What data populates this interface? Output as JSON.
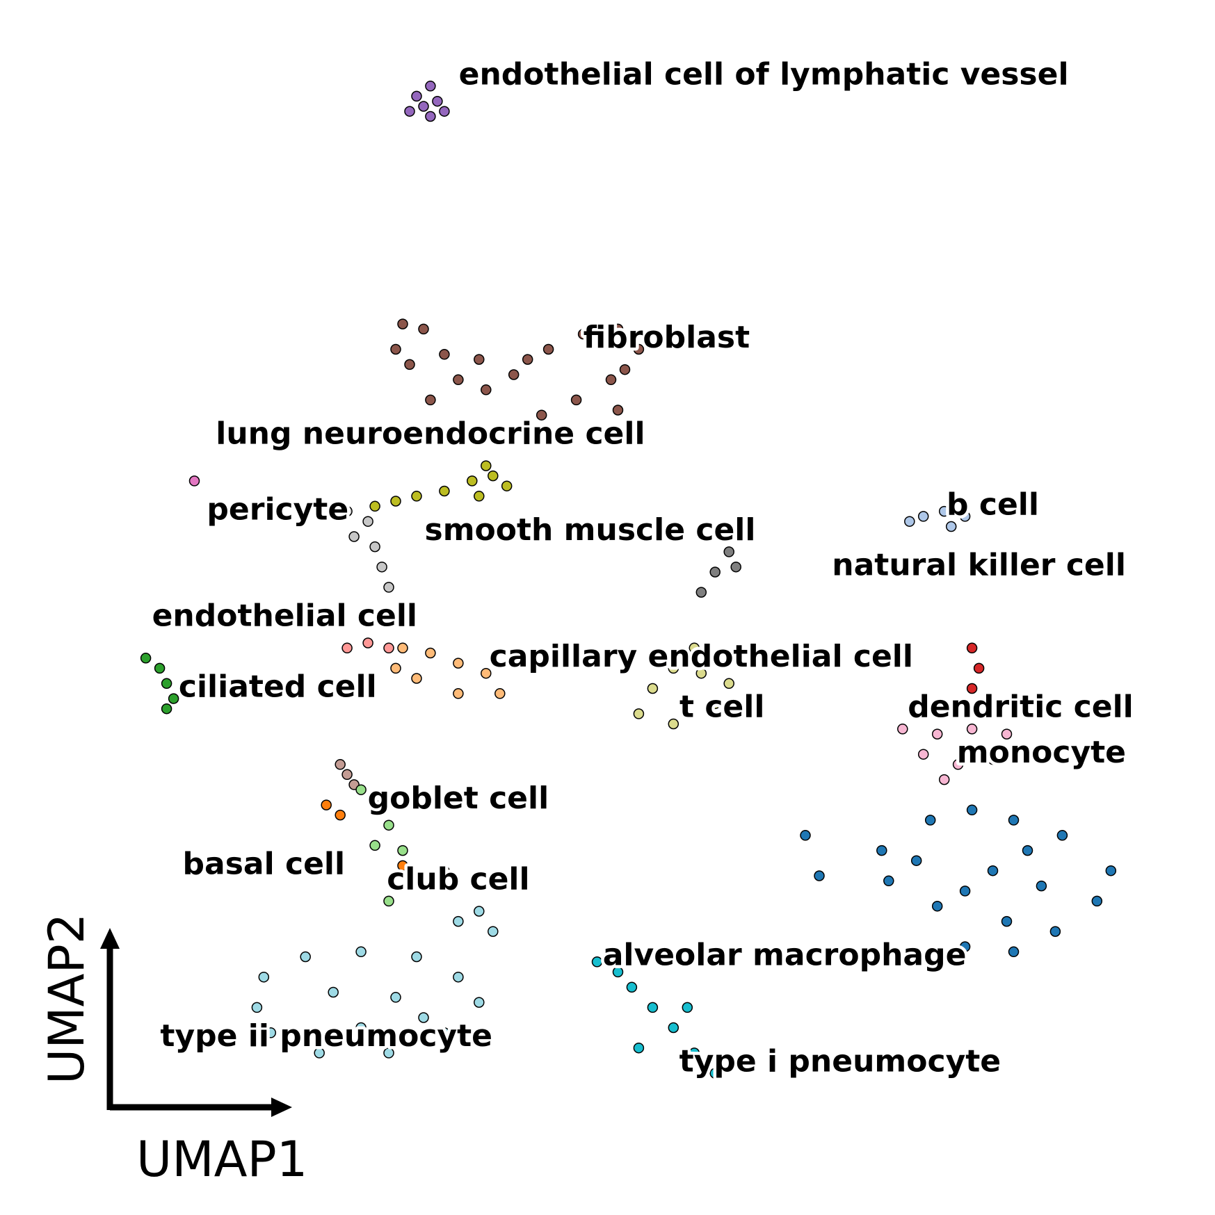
{
  "chart_data": {
    "type": "scatter",
    "xlabel": "UMAP1",
    "ylabel": "UMAP2",
    "grid": false,
    "legend": "on data",
    "series": [
      {
        "name": "endothelial cell of lymphatic vessel",
        "color": "#9467bd",
        "points": [
          [
            6.0,
            17.9
          ],
          [
            6.2,
            18.1
          ],
          [
            6.1,
            17.7
          ],
          [
            6.3,
            17.8
          ],
          [
            6.4,
            17.6
          ],
          [
            5.9,
            17.6
          ],
          [
            6.2,
            17.5
          ]
        ]
      },
      {
        "name": "fibroblast",
        "color": "#8c564b",
        "points": [
          [
            5.8,
            13.4
          ],
          [
            6.1,
            13.3
          ],
          [
            6.4,
            12.8
          ],
          [
            5.9,
            12.6
          ],
          [
            6.6,
            12.3
          ],
          [
            7.0,
            12.1
          ],
          [
            7.4,
            12.4
          ],
          [
            7.9,
            12.9
          ],
          [
            8.4,
            13.2
          ],
          [
            8.9,
            13.3
          ],
          [
            9.2,
            12.9
          ],
          [
            8.8,
            12.3
          ],
          [
            8.3,
            11.9
          ],
          [
            7.8,
            11.6
          ],
          [
            6.2,
            11.9
          ],
          [
            8.9,
            11.7
          ],
          [
            7.6,
            12.7
          ],
          [
            6.9,
            12.7
          ],
          [
            5.7,
            12.9
          ],
          [
            9.0,
            12.5
          ]
        ]
      },
      {
        "name": "lung neuroendocrine cell",
        "color": "#e377c2",
        "points": [
          [
            2.8,
            10.3
          ]
        ]
      },
      {
        "name": "smooth muscle cell",
        "color": "#bcbd22",
        "points": [
          [
            5.7,
            9.9
          ],
          [
            6.0,
            10.0
          ],
          [
            6.4,
            10.1
          ],
          [
            6.8,
            10.3
          ],
          [
            7.1,
            10.4
          ],
          [
            7.3,
            10.2
          ],
          [
            6.9,
            10.0
          ],
          [
            5.4,
            9.8
          ],
          [
            7.0,
            10.6
          ]
        ]
      },
      {
        "name": "pericyte",
        "color": "#c7c7c7",
        "points": [
          [
            5.0,
            9.7
          ],
          [
            5.3,
            9.5
          ],
          [
            5.1,
            9.2
          ],
          [
            5.4,
            9.0
          ],
          [
            5.5,
            8.6
          ],
          [
            5.6,
            8.2
          ]
        ]
      },
      {
        "name": "endothelial cell",
        "color": "#ff9896",
        "points": [
          [
            5.0,
            7.0
          ],
          [
            5.3,
            7.1
          ],
          [
            5.6,
            7.0
          ]
        ]
      },
      {
        "name": "capillary endothelial cell",
        "color": "#ffbb78",
        "points": [
          [
            5.8,
            7.0
          ],
          [
            6.2,
            6.9
          ],
          [
            6.6,
            6.7
          ],
          [
            7.0,
            6.5
          ],
          [
            6.0,
            6.4
          ],
          [
            6.6,
            6.1
          ],
          [
            7.2,
            6.1
          ],
          [
            5.7,
            6.6
          ]
        ]
      },
      {
        "name": "ciliated cell",
        "color": "#2ca02c",
        "points": [
          [
            2.1,
            6.8
          ],
          [
            2.3,
            6.6
          ],
          [
            2.4,
            6.3
          ],
          [
            2.5,
            6.0
          ],
          [
            2.4,
            5.8
          ]
        ]
      },
      {
        "name": "t cell",
        "color": "#dbdb8d",
        "points": [
          [
            10.0,
            7.0
          ],
          [
            9.7,
            6.6
          ],
          [
            9.4,
            6.2
          ],
          [
            9.2,
            5.7
          ],
          [
            9.7,
            5.5
          ],
          [
            10.3,
            5.9
          ],
          [
            10.5,
            6.3
          ],
          [
            10.1,
            6.5
          ]
        ]
      },
      {
        "name": "natural killer cell",
        "color": "#7f7f7f",
        "points": [
          [
            10.7,
            9.4
          ],
          [
            10.5,
            8.9
          ],
          [
            10.3,
            8.5
          ],
          [
            10.1,
            8.1
          ],
          [
            10.6,
            8.6
          ]
        ]
      },
      {
        "name": "b cell",
        "color": "#aec7e8",
        "points": [
          [
            13.3,
            9.6
          ],
          [
            13.6,
            9.7
          ],
          [
            13.9,
            9.6
          ],
          [
            13.1,
            9.5
          ],
          [
            13.7,
            9.4
          ]
        ]
      },
      {
        "name": "dendritic cell",
        "color": "#d62728",
        "points": [
          [
            14.0,
            7.0
          ],
          [
            14.1,
            6.6
          ],
          [
            14.0,
            6.2
          ],
          [
            13.9,
            5.9
          ]
        ]
      },
      {
        "name": "monocyte",
        "color": "#f7b6d2",
        "points": [
          [
            13.0,
            5.4
          ],
          [
            13.5,
            5.3
          ],
          [
            14.0,
            5.4
          ],
          [
            14.5,
            5.3
          ],
          [
            13.3,
            4.9
          ],
          [
            13.8,
            4.7
          ],
          [
            14.3,
            4.8
          ],
          [
            13.6,
            4.4
          ]
        ]
      },
      {
        "name": "alveolar macrophage",
        "color": "#1f77b4",
        "points": [
          [
            13.4,
            3.6
          ],
          [
            14.0,
            3.8
          ],
          [
            14.6,
            3.6
          ],
          [
            15.3,
            3.3
          ],
          [
            16.0,
            2.6
          ],
          [
            15.8,
            2.0
          ],
          [
            15.2,
            1.4
          ],
          [
            14.6,
            1.0
          ],
          [
            13.9,
            1.1
          ],
          [
            13.5,
            1.9
          ],
          [
            13.2,
            2.8
          ],
          [
            14.3,
            2.6
          ],
          [
            15.0,
            2.3
          ],
          [
            14.5,
            1.6
          ],
          [
            13.9,
            2.2
          ],
          [
            14.8,
            3.0
          ],
          [
            12.7,
            3.0
          ],
          [
            12.8,
            2.4
          ],
          [
            11.6,
            3.3
          ],
          [
            11.8,
            2.5
          ]
        ]
      },
      {
        "name": "goblet cell",
        "color": "#c49c94",
        "points": [
          [
            4.9,
            4.7
          ],
          [
            5.0,
            4.5
          ],
          [
            5.1,
            4.3
          ]
        ]
      },
      {
        "name": "basal cell",
        "color": "#ff7f0e",
        "points": [
          [
            4.7,
            3.9
          ],
          [
            4.9,
            3.7
          ],
          [
            6.1,
            2.4
          ],
          [
            6.4,
            2.6
          ],
          [
            5.8,
            2.7
          ]
        ]
      },
      {
        "name": "club cell",
        "color": "#98df8a",
        "points": [
          [
            5.2,
            4.2
          ],
          [
            5.4,
            3.9
          ],
          [
            5.6,
            3.5
          ],
          [
            5.8,
            3.0
          ],
          [
            5.4,
            3.1
          ],
          [
            5.9,
            2.3
          ],
          [
            5.6,
            2.0
          ]
        ]
      },
      {
        "name": "type ii pneumocyte",
        "color": "#9edae5",
        "points": [
          [
            3.8,
            0.5
          ],
          [
            4.4,
            0.9
          ],
          [
            5.2,
            1.0
          ],
          [
            6.0,
            0.9
          ],
          [
            6.6,
            0.5
          ],
          [
            6.9,
            0.0
          ],
          [
            6.4,
            -0.6
          ],
          [
            5.6,
            -1.0
          ],
          [
            4.6,
            -1.0
          ],
          [
            3.9,
            -0.6
          ],
          [
            3.7,
            -0.1
          ],
          [
            4.8,
            0.2
          ],
          [
            5.7,
            0.1
          ],
          [
            5.2,
            -0.5
          ],
          [
            6.1,
            -0.3
          ],
          [
            6.6,
            1.6
          ],
          [
            6.9,
            1.8
          ],
          [
            7.1,
            1.4
          ]
        ]
      },
      {
        "name": "type i pneumocyte",
        "color": "#17becf",
        "points": [
          [
            8.6,
            0.8
          ],
          [
            8.9,
            0.6
          ],
          [
            9.1,
            0.3
          ],
          [
            9.4,
            -0.1
          ],
          [
            9.7,
            -0.5
          ],
          [
            10.0,
            -1.0
          ],
          [
            10.3,
            -1.4
          ],
          [
            9.9,
            -0.1
          ],
          [
            9.2,
            -0.9
          ]
        ]
      }
    ],
    "annotations": [
      {
        "text": "endothelial cell of lymphatic vessel",
        "x": 11.0,
        "y": 18.3
      },
      {
        "text": "fibroblast",
        "x": 9.6,
        "y": 13.1
      },
      {
        "text": "lung neuroendocrine cell",
        "x": 6.2,
        "y": 11.2
      },
      {
        "text": "pericyte",
        "x": 4.0,
        "y": 9.7
      },
      {
        "text": "smooth muscle cell",
        "x": 8.5,
        "y": 9.3
      },
      {
        "text": "b cell",
        "x": 14.3,
        "y": 9.8
      },
      {
        "text": "natural killer cell",
        "x": 14.1,
        "y": 8.6
      },
      {
        "text": "endothelial cell",
        "x": 4.1,
        "y": 7.6
      },
      {
        "text": "capillary endothelial cell",
        "x": 10.1,
        "y": 6.8
      },
      {
        "text": "ciliated cell",
        "x": 4.0,
        "y": 6.2
      },
      {
        "text": "t cell",
        "x": 10.4,
        "y": 5.8
      },
      {
        "text": "dendritic cell",
        "x": 14.7,
        "y": 5.8
      },
      {
        "text": "monocyte",
        "x": 15.0,
        "y": 4.9
      },
      {
        "text": "goblet cell",
        "x": 6.6,
        "y": 4.0
      },
      {
        "text": "basal cell",
        "x": 3.8,
        "y": 2.7
      },
      {
        "text": "club cell",
        "x": 6.6,
        "y": 2.4
      },
      {
        "text": "alveolar macrophage",
        "x": 11.3,
        "y": 0.9
      },
      {
        "text": "type ii pneumocyte",
        "x": 4.7,
        "y": -0.7
      },
      {
        "text": "type i pneumocyte",
        "x": 12.1,
        "y": -1.2
      }
    ],
    "xlim": [
      0,
      17.5
    ],
    "ylim": [
      -4.2,
      19.8
    ]
  }
}
